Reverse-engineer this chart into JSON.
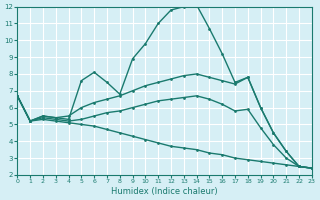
{
  "xlabel": "Humidex (Indice chaleur)",
  "xlim": [
    0,
    23
  ],
  "ylim": [
    2,
    12
  ],
  "yticks": [
    2,
    3,
    4,
    5,
    6,
    7,
    8,
    9,
    10,
    11,
    12
  ],
  "xticks": [
    0,
    1,
    2,
    3,
    4,
    5,
    6,
    7,
    8,
    9,
    10,
    11,
    12,
    13,
    14,
    15,
    16,
    17,
    18,
    19,
    20,
    21,
    22,
    23
  ],
  "bg_color": "#d6eff5",
  "grid_color": "#ffffff",
  "line_color": "#1a7a6e",
  "line1_x": [
    0,
    1,
    2,
    3,
    4,
    5,
    6,
    7,
    8,
    9,
    10,
    11,
    12,
    13,
    14,
    15,
    16,
    17,
    18,
    19,
    20,
    21,
    22,
    23
  ],
  "line1_y": [
    6.7,
    5.2,
    5.5,
    5.4,
    5.3,
    7.6,
    8.1,
    7.5,
    6.8,
    8.9,
    9.8,
    11.0,
    11.8,
    12.0,
    12.1,
    10.7,
    9.2,
    7.5,
    7.8,
    6.0,
    4.5,
    3.4,
    2.5,
    2.4
  ],
  "line2_x": [
    0,
    1,
    2,
    3,
    4,
    5,
    6,
    7,
    8,
    9,
    10,
    11,
    12,
    13,
    14,
    15,
    16,
    17,
    18,
    19,
    20,
    21,
    22,
    23
  ],
  "line2_y": [
    6.7,
    5.2,
    5.5,
    5.4,
    5.5,
    6.0,
    6.3,
    6.5,
    6.7,
    7.0,
    7.3,
    7.5,
    7.7,
    7.9,
    8.0,
    7.8,
    7.6,
    7.4,
    7.8,
    6.0,
    4.5,
    3.4,
    2.5,
    2.4
  ],
  "line3_x": [
    0,
    1,
    2,
    3,
    4,
    5,
    6,
    7,
    8,
    9,
    10,
    11,
    12,
    13,
    14,
    15,
    16,
    17,
    18,
    19,
    20,
    21,
    22,
    23
  ],
  "line3_y": [
    6.7,
    5.2,
    5.4,
    5.3,
    5.2,
    5.3,
    5.5,
    5.7,
    5.8,
    6.0,
    6.2,
    6.4,
    6.5,
    6.6,
    6.7,
    6.5,
    6.2,
    5.8,
    5.9,
    4.8,
    3.8,
    3.0,
    2.5,
    2.4
  ],
  "line4_x": [
    0,
    1,
    2,
    3,
    4,
    5,
    6,
    7,
    8,
    9,
    10,
    11,
    12,
    13,
    14,
    15,
    16,
    17,
    18,
    19,
    20,
    21,
    22,
    23
  ],
  "line4_y": [
    6.7,
    5.2,
    5.3,
    5.2,
    5.1,
    5.0,
    4.9,
    4.7,
    4.5,
    4.3,
    4.1,
    3.9,
    3.7,
    3.6,
    3.5,
    3.3,
    3.2,
    3.0,
    2.9,
    2.8,
    2.7,
    2.6,
    2.5,
    2.4
  ]
}
